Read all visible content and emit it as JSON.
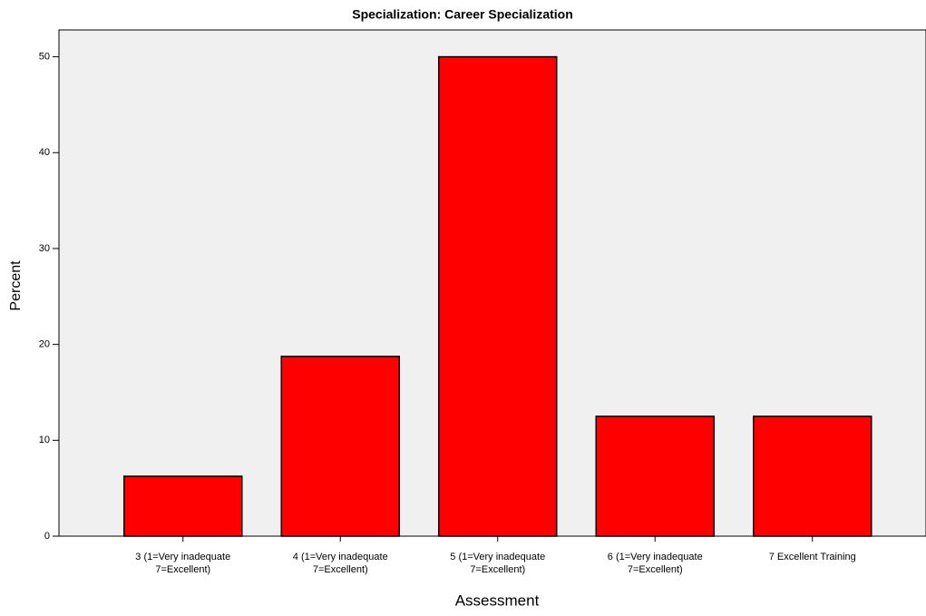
{
  "chart_data": {
    "type": "bar",
    "title": "Specialization: Career Specialization",
    "x_label": "Assessment",
    "y_label": "Percent",
    "categories": [
      "3 (1=Very inadequate\n7=Excellent)",
      "4 (1=Very inadequate\n7=Excellent)",
      "5 (1=Very inadequate\n7=Excellent)",
      "6 (1=Very inadequate\n7=Excellent)",
      "7 Excellent Training"
    ],
    "values": [
      6.25,
      18.75,
      50,
      12.5,
      12.5
    ],
    "color": "#ff0000",
    "ylim": [
      0,
      52.8
    ],
    "yticks": [
      0,
      10,
      20,
      30,
      40,
      50
    ],
    "grid": false
  }
}
